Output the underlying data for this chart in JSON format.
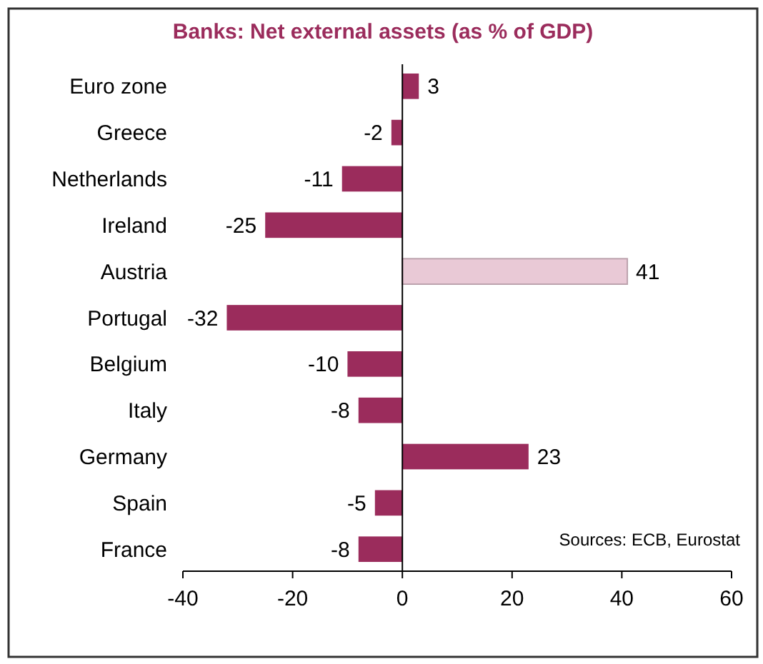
{
  "chart_data": {
    "type": "bar",
    "orientation": "horizontal",
    "title": "Banks: Net external assets (as % of GDP)",
    "categories": [
      "Euro zone",
      "Greece",
      "Netherlands",
      "Ireland",
      "Austria",
      "Portugal",
      "Belgium",
      "Italy",
      "Germany",
      "Spain",
      "France"
    ],
    "values": [
      3,
      -2,
      -11,
      -25,
      41,
      -32,
      -10,
      -8,
      23,
      -5,
      -8
    ],
    "colors": [
      "#9b2c5c",
      "#9b2c5c",
      "#9b2c5c",
      "#9b2c5c",
      "#e9c9d6",
      "#9b2c5c",
      "#9b2c5c",
      "#9b2c5c",
      "#9b2c5c",
      "#9b2c5c",
      "#9b2c5c"
    ],
    "xlim": [
      -40,
      60
    ],
    "xticks": [
      -40,
      -20,
      0,
      20,
      40,
      60
    ],
    "data_labels": true,
    "annotations": [
      "Sources: ECB, Eurostat"
    ]
  }
}
